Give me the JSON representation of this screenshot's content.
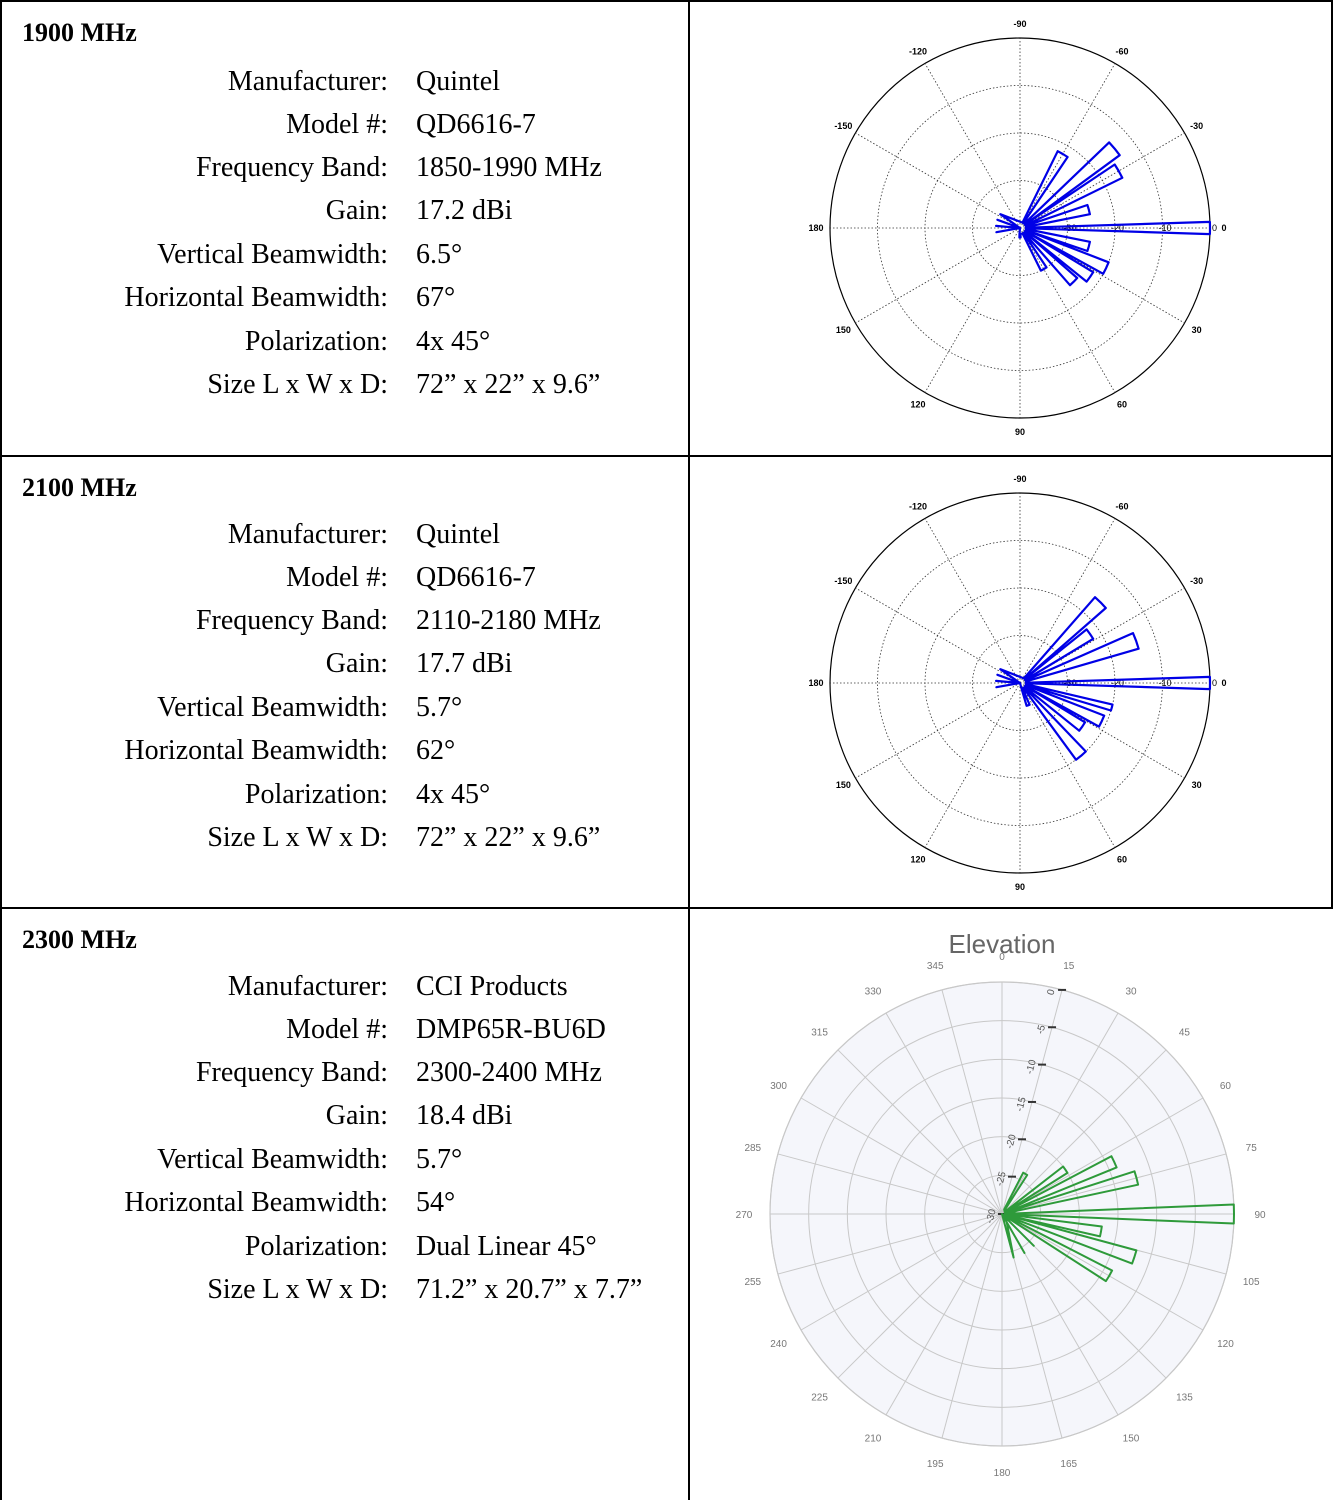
{
  "rows": [
    {
      "band": "1900 MHz",
      "specs": [
        {
          "label": "Manufacturer:",
          "value": "Quintel"
        },
        {
          "label": "Model #:",
          "value": "QD6616-7"
        },
        {
          "label": "Frequency Band:",
          "value": "1850-1990 MHz"
        },
        {
          "label": "Gain:",
          "value": "17.2 dBi"
        },
        {
          "label": "Vertical Beamwidth:",
          "value": "6.5°"
        },
        {
          "label": "Horizontal Beamwidth:",
          "value": "67°"
        },
        {
          "label": "Polarization:",
          "value": "4x 45°"
        },
        {
          "label": "Size L x W x D:",
          "value": "72” x 22” x 9.6”"
        }
      ]
    },
    {
      "band": "2100 MHz",
      "specs": [
        {
          "label": "Manufacturer:",
          "value": "Quintel"
        },
        {
          "label": "Model #:",
          "value": "QD6616-7"
        },
        {
          "label": "Frequency Band:",
          "value": "2110-2180 MHz"
        },
        {
          "label": "Gain:",
          "value": "17.7 dBi"
        },
        {
          "label": "Vertical Beamwidth:",
          "value": "5.7°"
        },
        {
          "label": "Horizontal Beamwidth:",
          "value": "62°"
        },
        {
          "label": "Polarization:",
          "value": "4x 45°"
        },
        {
          "label": "Size L x W x D:",
          "value": "72” x 22” x 9.6”"
        }
      ]
    },
    {
      "band": "2300 MHz",
      "specs": [
        {
          "label": "Manufacturer:",
          "value": "CCI Products"
        },
        {
          "label": "Model #:",
          "value": "DMP65R-BU6D"
        },
        {
          "label": "Frequency Band:",
          "value": "2300-2400 MHz"
        },
        {
          "label": "Gain:",
          "value": "18.4 dBi"
        },
        {
          "label": "Vertical Beamwidth:",
          "value": "5.7°"
        },
        {
          "label": "Horizontal Beamwidth:",
          "value": "54°"
        },
        {
          "label": "Polarization:",
          "value": "Dual Linear 45°"
        },
        {
          "label": "Size L x W x D:",
          "value": "71.2” x 20.7” x 7.7”"
        }
      ]
    }
  ],
  "colors": {
    "plot1": "#0000e6",
    "plot2": "#0000e6",
    "plot3": "#2e9a3a",
    "grid3": "#c8c8c8"
  },
  "chart_data": [
    {
      "type": "polar-line",
      "angle_ticks": [
        "-90",
        "-60",
        "-30",
        "0",
        "30",
        "60",
        "90",
        "120",
        "150",
        "180",
        "-150",
        "-120"
      ],
      "radial_ticks": [
        "-30",
        "-20",
        "-10",
        "0"
      ],
      "rlim": [
        -40,
        0
      ],
      "series": [
        {
          "values_deg": [
            -60,
            -40,
            -30,
            -15,
            0,
            15,
            25,
            35,
            45,
            60,
            90
          ],
          "values_db": [
            -22,
            -14,
            -16,
            -25,
            0,
            -25,
            -20,
            -22,
            -24,
            -30,
            -38
          ]
        }
      ]
    },
    {
      "type": "polar-line",
      "angle_ticks": [
        "-90",
        "-60",
        "-30",
        "0",
        "30",
        "60",
        "90",
        "120",
        "150",
        "180",
        "-150",
        "-120"
      ],
      "radial_ticks": [
        "-30",
        "-20",
        "-10",
        "0"
      ],
      "rlim": [
        -40,
        0
      ],
      "series": [
        {
          "values_deg": [
            -45,
            -35,
            -20,
            0,
            15,
            25,
            35,
            50,
            70
          ],
          "values_db": [
            -16,
            -22,
            -14,
            0,
            -20,
            -21,
            -24,
            -20,
            -35
          ]
        }
      ]
    },
    {
      "type": "polar-line",
      "title": "Elevation",
      "angle_ticks": [
        "0",
        "15",
        "30",
        "45",
        "60",
        "75",
        "90",
        "105",
        "120",
        "135",
        "150",
        "165",
        "180",
        "195",
        "210",
        "225",
        "240",
        "255",
        "270",
        "285",
        "300",
        "315",
        "330",
        "345"
      ],
      "radial_ticks": [
        "0",
        "-5",
        "-10",
        "-15",
        "-20",
        "-25",
        "-30"
      ],
      "rlim": [
        -30,
        0
      ],
      "series": [
        {
          "values_deg": [
            30,
            55,
            65,
            75,
            90,
            100,
            108,
            120
          ],
          "values_db": [
            -24,
            -20,
            -14,
            -12,
            0,
            -17,
            -12,
            -14
          ]
        }
      ]
    }
  ]
}
